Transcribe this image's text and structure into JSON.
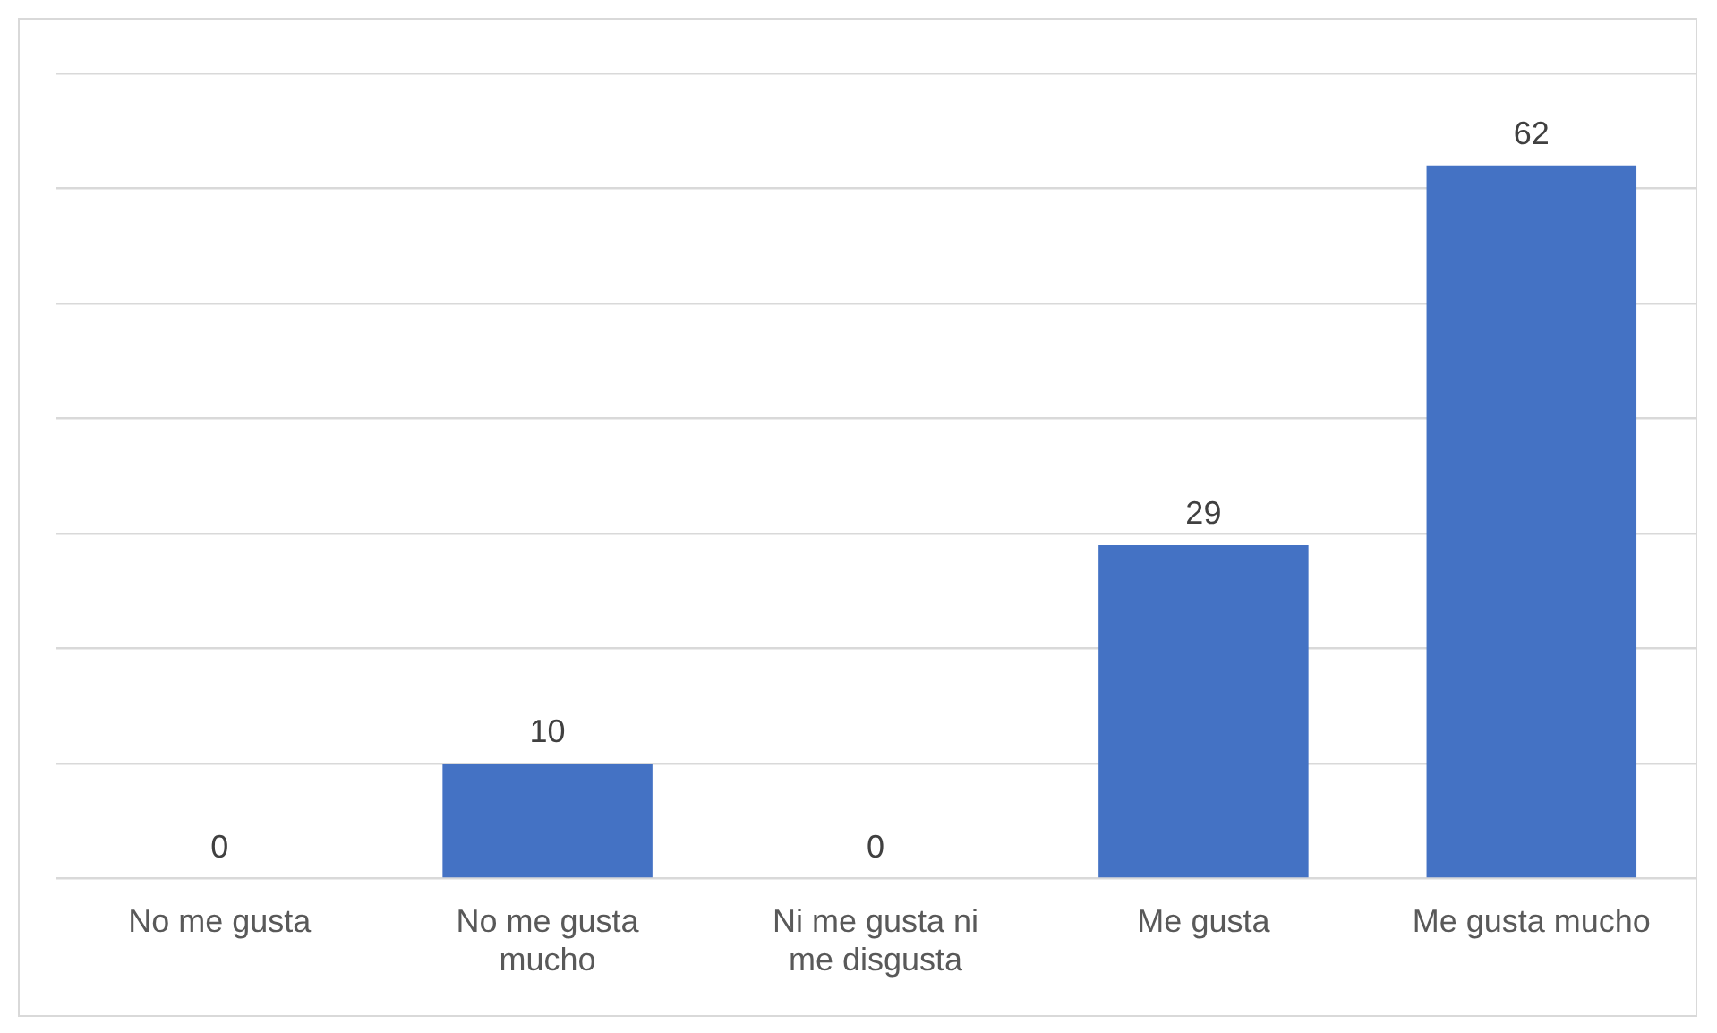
{
  "chart_data": {
    "type": "bar",
    "categories": [
      "No me gusta",
      "No me gusta mucho",
      "Ni me gusta ni me disgusta",
      "Me gusta",
      "Me gusta mucho"
    ],
    "values": [
      0,
      10,
      0,
      29,
      62
    ],
    "color": "#4472c4",
    "data_labels": true,
    "ylim": [
      0,
      70
    ],
    "yticks": [
      {
        "value": 0,
        "label": null
      },
      {
        "value": 10,
        "label": null
      },
      {
        "value": 20,
        "label": null
      },
      {
        "value": 30,
        "label": null
      },
      {
        "value": 40,
        "label": null
      },
      {
        "value": 50,
        "label": null
      },
      {
        "value": 60,
        "label": null
      },
      {
        "value": 70,
        "label": null
      }
    ],
    "grid": "y",
    "tick_labels": "x",
    "legend": false
  }
}
